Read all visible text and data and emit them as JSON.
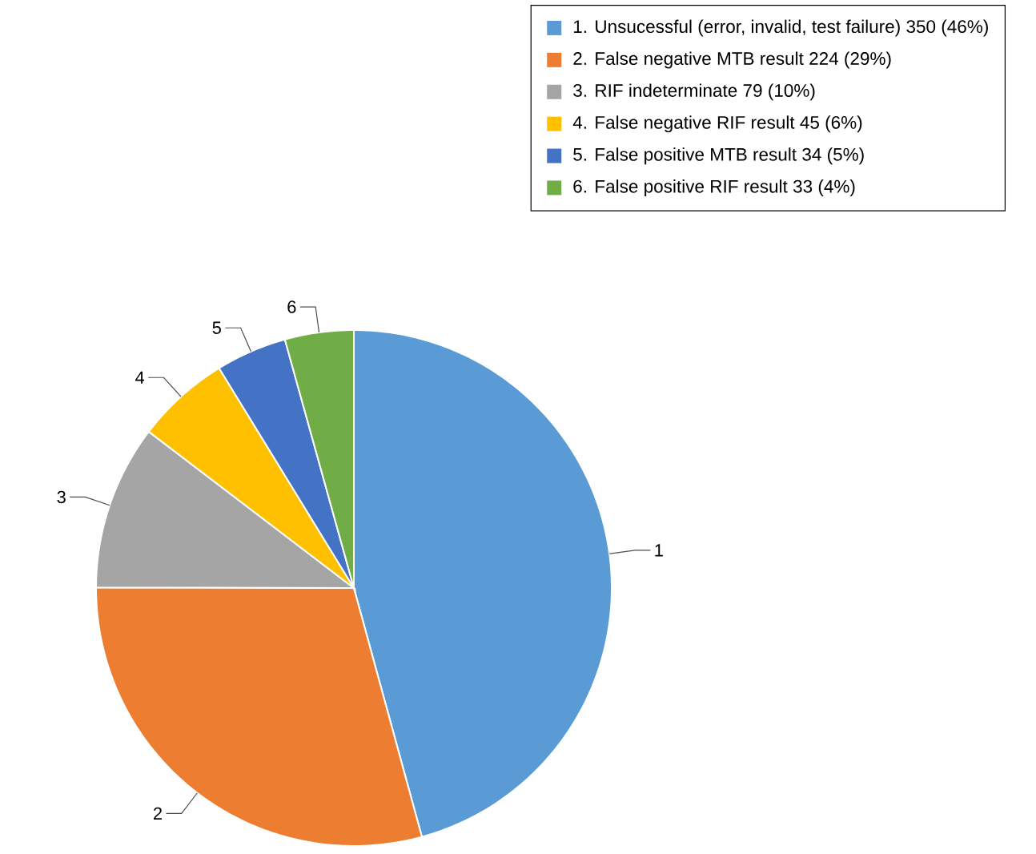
{
  "chart_data": {
    "type": "pie",
    "categories": [
      "1. Unsucessful (error, invalid, test failure) 350 (46%)",
      "2. False negative MTB result 224 (29%)",
      "3. RIF indeterminate 79 (10%)",
      "4. False negative RIF result 45 (6%)",
      "5. False positive MTB result 34 (5%)",
      "6. False positive RIF result 33 (4%)"
    ],
    "values": [
      350,
      224,
      79,
      45,
      34,
      33
    ],
    "colors": [
      "#5b9bd5",
      "#ed7d31",
      "#a5a5a5",
      "#ffc000",
      "#4472c4",
      "#70ad47"
    ],
    "annotations": [
      "1",
      "2",
      "3",
      "4",
      "5",
      "6"
    ],
    "legend": "top right"
  }
}
